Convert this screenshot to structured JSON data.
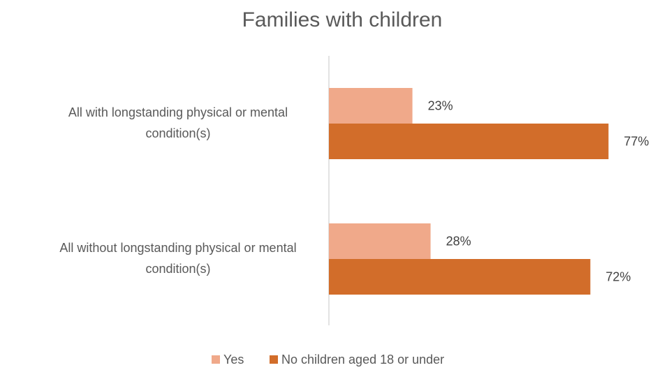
{
  "chart_data": {
    "type": "bar",
    "orientation": "horizontal",
    "title": "Families with children",
    "categories": [
      [
        "All with longstanding physical or mental",
        "condition(s)"
      ],
      [
        "All without longstanding physical or mental",
        "condition(s)"
      ]
    ],
    "series": [
      {
        "name": "Yes",
        "color": "#F0A98A",
        "values": [
          23,
          28
        ],
        "labels": [
          "23%",
          "28%"
        ]
      },
      {
        "name": "No children aged 18 or under",
        "color": "#D26D2A",
        "values": [
          77,
          72
        ],
        "labels": [
          "77%",
          "72%"
        ]
      }
    ],
    "xlim": [
      0,
      100
    ],
    "unit": "%",
    "grid": false,
    "legend_position": "bottom"
  }
}
